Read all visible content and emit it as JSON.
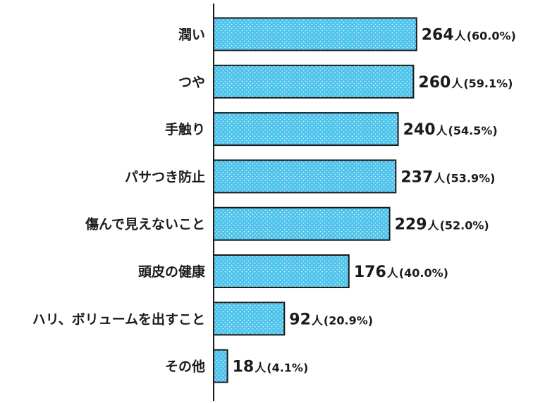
{
  "chart_data": {
    "type": "bar",
    "orientation": "horizontal",
    "categories": [
      "潤い",
      "つや",
      "手触り",
      "パサつき防止",
      "傷んで見えないこと",
      "頭皮の健康",
      "ハリ、ボリュームを出すこと",
      "その他"
    ],
    "values": [
      264,
      260,
      240,
      237,
      229,
      176,
      92,
      18
    ],
    "percents": [
      "60.0%",
      "59.1%",
      "54.5%",
      "53.9%",
      "52.0%",
      "40.0%",
      "20.9%",
      "4.1%"
    ],
    "unit": "人",
    "xlim": [
      0,
      300
    ],
    "grid": false,
    "legend": "none",
    "colors": {
      "bar_fill": "#4ec3ec",
      "bar_dots": "#d9f3fc",
      "bar_stroke": "#1a1a1a",
      "axis": "#1a1a1a",
      "text": "#1a1a1a"
    }
  }
}
